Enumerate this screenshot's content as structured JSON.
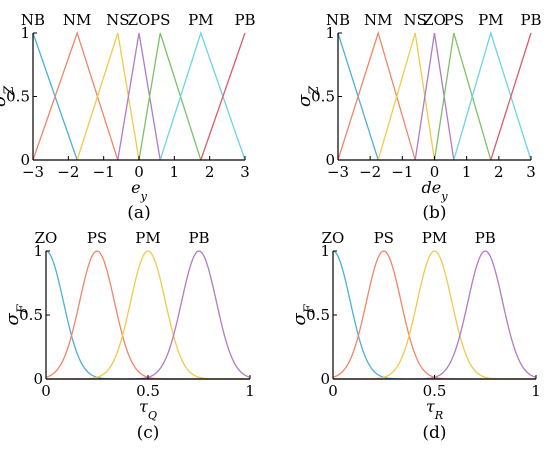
{
  "chart_data": [
    {
      "panel": "(a)",
      "type": "line",
      "ylabel": "σ_Z",
      "xlabel": "e_y",
      "xlim": [
        -3,
        3
      ],
      "ylim": [
        0,
        1
      ],
      "xticks": [
        "−3",
        "−2",
        "−1",
        "0",
        "1",
        "2",
        "3"
      ],
      "yticks": [
        "0",
        "0.5",
        "1"
      ],
      "series": [
        {
          "name": "NB",
          "kind": "tri",
          "points": [
            [
              -3,
              1
            ],
            [
              -1.75,
              0
            ]
          ],
          "color": "#4fb0d9"
        },
        {
          "name": "NM",
          "kind": "tri",
          "points": [
            [
              -3,
              0
            ],
            [
              -1.75,
              1
            ],
            [
              -0.6,
              0
            ]
          ],
          "color": "#f0866a"
        },
        {
          "name": "NS",
          "kind": "tri",
          "points": [
            [
              -1.75,
              0
            ],
            [
              -0.6,
              1
            ],
            [
              0,
              0
            ]
          ],
          "color": "#f2c94c"
        },
        {
          "name": "ZO",
          "kind": "tri",
          "points": [
            [
              -0.6,
              0
            ],
            [
              0,
              1
            ],
            [
              0.6,
              0
            ]
          ],
          "color": "#b07cc6"
        },
        {
          "name": "PS",
          "kind": "tri",
          "points": [
            [
              0,
              0
            ],
            [
              0.6,
              1
            ],
            [
              1.75,
              0
            ]
          ],
          "color": "#7fbf6a"
        },
        {
          "name": "PM",
          "kind": "tri",
          "points": [
            [
              0.6,
              0
            ],
            [
              1.75,
              1
            ],
            [
              3,
              0
            ]
          ],
          "color": "#6ed3e6"
        },
        {
          "name": "PB",
          "kind": "tri",
          "points": [
            [
              1.75,
              0
            ],
            [
              3,
              1
            ]
          ],
          "color": "#e05a6a"
        }
      ]
    },
    {
      "panel": "(b)",
      "type": "line",
      "ylabel": "σ_Z",
      "xlabel": "de_y",
      "xlim": [
        -3,
        3
      ],
      "ylim": [
        0,
        1
      ],
      "xticks": [
        "−3",
        "−2",
        "−1",
        "0",
        "1",
        "2",
        "3"
      ],
      "yticks": [
        "0",
        "0.5",
        "1"
      ],
      "series": [
        {
          "name": "NB",
          "kind": "tri",
          "points": [
            [
              -3,
              1
            ],
            [
              -1.75,
              0
            ]
          ],
          "color": "#4fb0d9"
        },
        {
          "name": "NM",
          "kind": "tri",
          "points": [
            [
              -3,
              0
            ],
            [
              -1.75,
              1
            ],
            [
              -0.6,
              0
            ]
          ],
          "color": "#f0866a"
        },
        {
          "name": "NS",
          "kind": "tri",
          "points": [
            [
              -1.75,
              0
            ],
            [
              -0.6,
              1
            ],
            [
              0,
              0
            ]
          ],
          "color": "#f2c94c"
        },
        {
          "name": "ZO",
          "kind": "tri",
          "points": [
            [
              -0.6,
              0
            ],
            [
              0,
              1
            ],
            [
              0.6,
              0
            ]
          ],
          "color": "#b07cc6"
        },
        {
          "name": "PS",
          "kind": "tri",
          "points": [
            [
              0,
              0
            ],
            [
              0.6,
              1
            ],
            [
              1.75,
              0
            ]
          ],
          "color": "#7fbf6a"
        },
        {
          "name": "PM",
          "kind": "tri",
          "points": [
            [
              0.6,
              0
            ],
            [
              1.75,
              1
            ],
            [
              3,
              0
            ]
          ],
          "color": "#6ed3e6"
        },
        {
          "name": "PB",
          "kind": "tri",
          "points": [
            [
              1.75,
              0
            ],
            [
              3,
              1
            ]
          ],
          "color": "#e05a6a"
        }
      ]
    },
    {
      "panel": "(c)",
      "type": "line",
      "ylabel": "σ_F",
      "xlabel": "τ_Q",
      "xlim": [
        0,
        1
      ],
      "ylim": [
        0,
        1
      ],
      "xticks": [
        "0",
        "0.5",
        "1"
      ],
      "yticks": [
        "0",
        "0.5",
        "1"
      ],
      "series": [
        {
          "name": "ZO",
          "kind": "gauss",
          "mean": 0,
          "sigma": 0.085,
          "color": "#4fb0d9"
        },
        {
          "name": "PS",
          "kind": "gauss",
          "mean": 0.25,
          "sigma": 0.085,
          "color": "#f0866a"
        },
        {
          "name": "PM",
          "kind": "gauss",
          "mean": 0.5,
          "sigma": 0.085,
          "color": "#f2c94c"
        },
        {
          "name": "PB",
          "kind": "gauss",
          "mean": 0.75,
          "sigma": 0.085,
          "color": "#b07cc6"
        }
      ]
    },
    {
      "panel": "(d)",
      "type": "line",
      "ylabel": "σ_F",
      "xlabel": "τ_R",
      "xlim": [
        0,
        1
      ],
      "ylim": [
        0,
        1
      ],
      "xticks": [
        "0",
        "0.5",
        "1"
      ],
      "yticks": [
        "0",
        "0.5",
        "1"
      ],
      "series": [
        {
          "name": "ZO",
          "kind": "gauss",
          "mean": 0,
          "sigma": 0.085,
          "color": "#4fb0d9"
        },
        {
          "name": "PS",
          "kind": "gauss",
          "mean": 0.25,
          "sigma": 0.085,
          "color": "#f0866a"
        },
        {
          "name": "PM",
          "kind": "gauss",
          "mean": 0.5,
          "sigma": 0.085,
          "color": "#f2c94c"
        },
        {
          "name": "PB",
          "kind": "gauss",
          "mean": 0.75,
          "sigma": 0.085,
          "color": "#b07cc6"
        }
      ]
    }
  ]
}
